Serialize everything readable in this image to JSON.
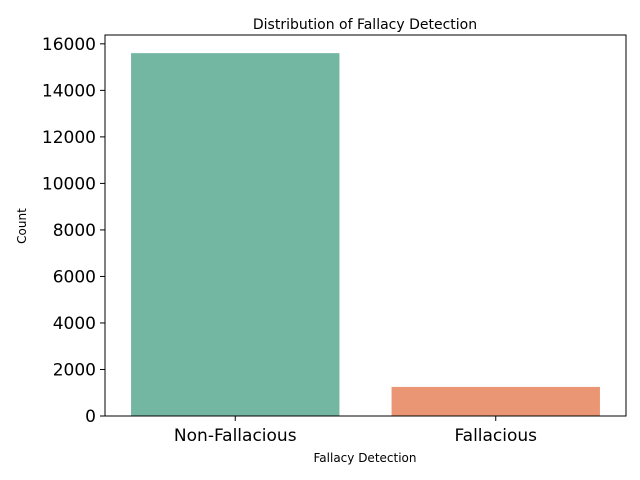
{
  "chart_data": {
    "type": "bar",
    "title": "Distribution of Fallacy Detection",
    "xlabel": "Fallacy Detection",
    "ylabel": "Count",
    "categories": [
      "Non-Fallacious",
      "Fallacious"
    ],
    "values": [
      15600,
      1250
    ],
    "colors": [
      "#73b6a1",
      "#ea9675"
    ],
    "ylim": [
      0,
      16380
    ],
    "yticks": [
      0,
      2000,
      4000,
      6000,
      8000,
      10000,
      12000,
      14000,
      16000
    ],
    "grid": false,
    "legend": "none"
  }
}
